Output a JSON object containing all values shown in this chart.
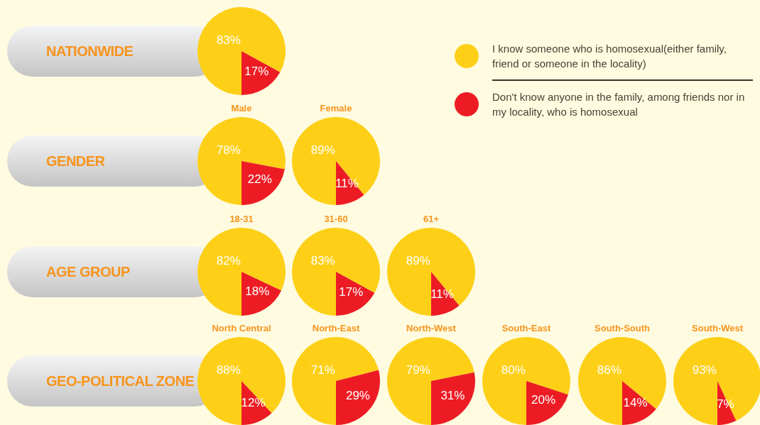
{
  "chart_data": [
    {
      "type": "pie",
      "categories": [
        "I know someone who is homosexual(either family, friend or someone in the locality)",
        "Don't know anyone in the family, among friends nor in my locality, who is homosexual"
      ],
      "values": [
        83,
        17
      ],
      "colors": [
        "#fdd017",
        "#ed1c24"
      ],
      "value_labels": [
        "83%",
        "17%"
      ],
      "legend": "right",
      "annotations": [
        "NATIONWIDE"
      ]
    },
    {
      "type": "pie",
      "title": "Male",
      "categories": [
        null,
        null
      ],
      "values": [
        78,
        22
      ],
      "colors": [
        "#fdd017",
        "#ed1c24"
      ],
      "value_labels": [
        "78%",
        "22%"
      ],
      "annotations": [
        "GENDER"
      ]
    },
    {
      "type": "pie",
      "title": "Female",
      "categories": [
        null,
        null
      ],
      "values": [
        89,
        11
      ],
      "colors": [
        "#fdd017",
        "#ed1c24"
      ],
      "value_labels": [
        "89%",
        "11%"
      ]
    },
    {
      "type": "pie",
      "title": "18-31",
      "categories": [
        null,
        null
      ],
      "values": [
        82,
        18
      ],
      "colors": [
        "#fdd017",
        "#ed1c24"
      ],
      "value_labels": [
        "82%",
        "18%"
      ],
      "annotations": [
        "AGE GROUP"
      ]
    },
    {
      "type": "pie",
      "title": "31-60",
      "categories": [
        null,
        null
      ],
      "values": [
        83,
        17
      ],
      "colors": [
        "#fdd017",
        "#ed1c24"
      ],
      "value_labels": [
        "83%",
        "17%"
      ]
    },
    {
      "type": "pie",
      "title": "61+",
      "categories": [
        null,
        null
      ],
      "values": [
        89,
        11
      ],
      "colors": [
        "#fdd017",
        "#ed1c24"
      ],
      "value_labels": [
        "89%",
        "11%"
      ]
    },
    {
      "type": "pie",
      "title": "North Central",
      "categories": [
        null,
        null
      ],
      "values": [
        88,
        12
      ],
      "colors": [
        "#fdd017",
        "#ed1c24"
      ],
      "value_labels": [
        "88%",
        "12%"
      ],
      "annotations": [
        "GEO-POLITICAL ZONE"
      ]
    },
    {
      "type": "pie",
      "title": "North-East",
      "categories": [
        null,
        null
      ],
      "values": [
        71,
        29
      ],
      "colors": [
        "#fdd017",
        "#ed1c24"
      ],
      "value_labels": [
        "71%",
        "29%"
      ]
    },
    {
      "type": "pie",
      "title": "North-West",
      "categories": [
        null,
        null
      ],
      "values": [
        79,
        31
      ],
      "colors": [
        "#fdd017",
        "#ed1c24"
      ],
      "value_labels": [
        "79%",
        "31%"
      ]
    },
    {
      "type": "pie",
      "title": "South-East",
      "categories": [
        null,
        null
      ],
      "values": [
        80,
        20
      ],
      "colors": [
        "#fdd017",
        "#ed1c24"
      ],
      "value_labels": [
        "80%",
        "20%"
      ]
    },
    {
      "type": "pie",
      "title": "South-South",
      "categories": [
        null,
        null
      ],
      "values": [
        86,
        14
      ],
      "colors": [
        "#fdd017",
        "#ed1c24"
      ],
      "value_labels": [
        "86%",
        "14%"
      ]
    },
    {
      "type": "pie",
      "title": "South-West",
      "categories": [
        null,
        null
      ],
      "values": [
        93,
        7
      ],
      "colors": [
        "#fdd017",
        "#ed1c24"
      ],
      "value_labels": [
        "93%",
        "7%"
      ]
    }
  ]
}
